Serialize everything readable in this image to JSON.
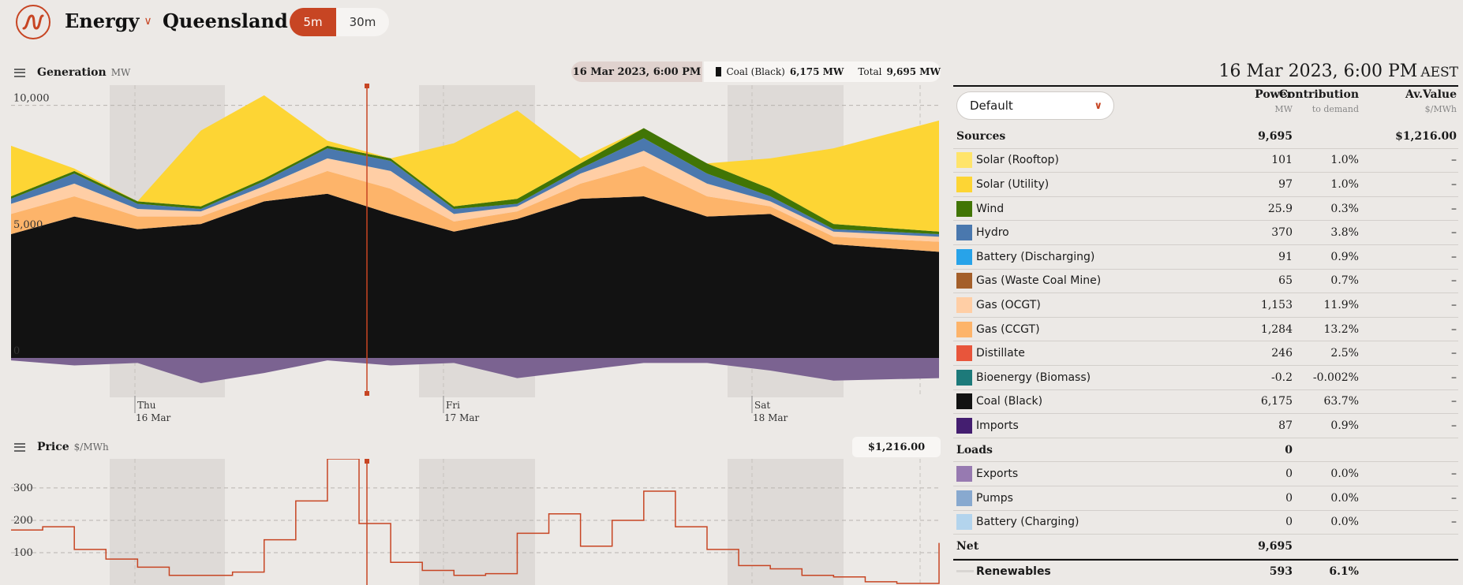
{
  "header": {
    "menu1": "Energy",
    "menu2": "Queensland",
    "interval_on": "5m",
    "interval_off": "30m"
  },
  "generation": {
    "label": "Generation",
    "unit": "MW",
    "tooltip_date": "16 Mar 2023, 6:00 PM",
    "tooltip_fuel": "Coal (Black)",
    "tooltip_fuel_value": "6,175 MW",
    "tooltip_total_label": "Total",
    "tooltip_total_value": "9,695 MW"
  },
  "price": {
    "label": "Price",
    "unit": "$/MWh",
    "tooltip_value": "$1,216.00"
  },
  "panel": {
    "date": "16 Mar 2023, 6:00 PM",
    "tz": "AEST",
    "dropdown": "Default",
    "col_power": "Power",
    "col_power_unit": "MW",
    "col_contrib": "Contribution",
    "col_contrib_unit": "to demand",
    "col_value": "Av.Value",
    "col_value_unit": "$/MWh",
    "sources": {
      "label": "Sources",
      "power": "9,695",
      "value": "$1,216.00"
    },
    "source_rows": [
      {
        "name": "Solar (Rooftop)",
        "color": "#ffe46a",
        "power": "101",
        "contrib": "1.0%",
        "value": "–"
      },
      {
        "name": "Solar (Utility)",
        "color": "#fdd534",
        "power": "97",
        "contrib": "1.0%",
        "value": "–"
      },
      {
        "name": "Wind",
        "color": "#417505",
        "power": "25.9",
        "contrib": "0.3%",
        "value": "–"
      },
      {
        "name": "Hydro",
        "color": "#4a78ae",
        "power": "370",
        "contrib": "3.8%",
        "value": "–"
      },
      {
        "name": "Battery (Discharging)",
        "color": "#28a3e9",
        "power": "91",
        "contrib": "0.9%",
        "value": "–"
      },
      {
        "name": "Gas (Waste Coal Mine)",
        "color": "#a45f2a",
        "power": "65",
        "contrib": "0.7%",
        "value": "–"
      },
      {
        "name": "Gas (OCGT)",
        "color": "#ffcea5",
        "power": "1,153",
        "contrib": "11.9%",
        "value": "–"
      },
      {
        "name": "Gas (CCGT)",
        "color": "#fdb46a",
        "power": "1,284",
        "contrib": "13.2%",
        "value": "–"
      },
      {
        "name": "Distillate",
        "color": "#e8553b",
        "power": "246",
        "contrib": "2.5%",
        "value": "–"
      },
      {
        "name": "Bioenergy (Biomass)",
        "color": "#1d7a7a",
        "power": "-0.2",
        "contrib": "-0.002%",
        "value": "–"
      },
      {
        "name": "Coal (Black)",
        "color": "#121212",
        "power": "6,175",
        "contrib": "63.7%",
        "value": "–"
      },
      {
        "name": "Imports",
        "color": "#441e70",
        "power": "87",
        "contrib": "0.9%",
        "value": "–"
      }
    ],
    "loads": {
      "label": "Loads",
      "power": "0"
    },
    "load_rows": [
      {
        "name": "Exports",
        "color": "#977ab1",
        "power": "0",
        "contrib": "0.0%",
        "value": "–"
      },
      {
        "name": "Pumps",
        "color": "#88a9cf",
        "power": "0",
        "contrib": "0.0%",
        "value": "–"
      },
      {
        "name": "Battery (Charging)",
        "color": "#b3d4ed",
        "power": "0",
        "contrib": "0.0%",
        "value": "–"
      }
    ],
    "net": {
      "label": "Net",
      "power": "9,695"
    },
    "renewables": {
      "label": "Renewables",
      "power": "593",
      "contrib": "6.1%"
    }
  },
  "chart_data": [
    {
      "type": "area",
      "title": "Generation",
      "ylabel": "MW",
      "yticks": [
        "10,000",
        "5,000",
        "0"
      ],
      "xticks": [
        [
          "Thu",
          "16 Mar"
        ],
        [
          "Fri",
          "17 Mar"
        ],
        [
          "Sat",
          "18 Mar"
        ]
      ],
      "ylim": [
        -1500,
        10800
      ],
      "x_hours": [
        0,
        6,
        12,
        18,
        24,
        30,
        36,
        42,
        48,
        54,
        60,
        66,
        72,
        78,
        88
      ],
      "series": [
        {
          "name": "Coal (Black)",
          "color": "#121212",
          "values": [
            4900,
            5600,
            5100,
            5300,
            6200,
            6500,
            5700,
            5000,
            5500,
            6300,
            6400,
            5600,
            5700,
            4500,
            4200
          ]
        },
        {
          "name": "Gas (CCGT)",
          "color": "#fdb46a",
          "values": [
            800,
            800,
            500,
            300,
            300,
            900,
            1000,
            400,
            300,
            600,
            1200,
            800,
            300,
            300,
            400
          ]
        },
        {
          "name": "Gas (OCGT)",
          "color": "#ffcea5",
          "values": [
            400,
            500,
            300,
            200,
            300,
            500,
            700,
            300,
            200,
            400,
            600,
            500,
            200,
            200,
            200
          ]
        },
        {
          "name": "Hydro",
          "color": "#4a78ae",
          "values": [
            200,
            400,
            200,
            100,
            200,
            400,
            400,
            200,
            100,
            200,
            500,
            400,
            200,
            100,
            100
          ]
        },
        {
          "name": "Wind",
          "color": "#417505",
          "values": [
            100,
            100,
            100,
            100,
            100,
            100,
            100,
            100,
            200,
            200,
            400,
            400,
            300,
            200,
            100
          ]
        },
        {
          "name": "Solar (Utility)",
          "color": "#fdd534",
          "values": [
            2000,
            100,
            0,
            3000,
            3300,
            200,
            0,
            2500,
            3500,
            200,
            0,
            0,
            1200,
            3000,
            4400
          ]
        },
        {
          "name": "Exports",
          "color": "#7b6391",
          "values": [
            -100,
            -300,
            -200,
            -1000,
            -600,
            -100,
            -300,
            -200,
            -800,
            -500,
            -200,
            -200,
            -500,
            -900,
            -800
          ]
        }
      ]
    },
    {
      "type": "line",
      "title": "Price",
      "ylabel": "$/MWh",
      "yticks": [
        "300",
        "200",
        "100"
      ],
      "ylim": [
        0,
        390
      ],
      "x_hours": [
        0,
        3,
        6,
        9,
        12,
        15,
        18,
        21,
        24,
        27,
        30,
        33,
        36,
        39,
        42,
        45,
        48,
        51,
        54,
        57,
        60,
        63,
        66,
        69,
        72,
        75,
        78,
        81,
        84,
        88
      ],
      "values": [
        170,
        180,
        110,
        80,
        55,
        30,
        30,
        40,
        140,
        260,
        390,
        190,
        70,
        45,
        30,
        35,
        160,
        220,
        120,
        200,
        290,
        180,
        110,
        60,
        50,
        30,
        25,
        10,
        5,
        130
      ]
    }
  ]
}
